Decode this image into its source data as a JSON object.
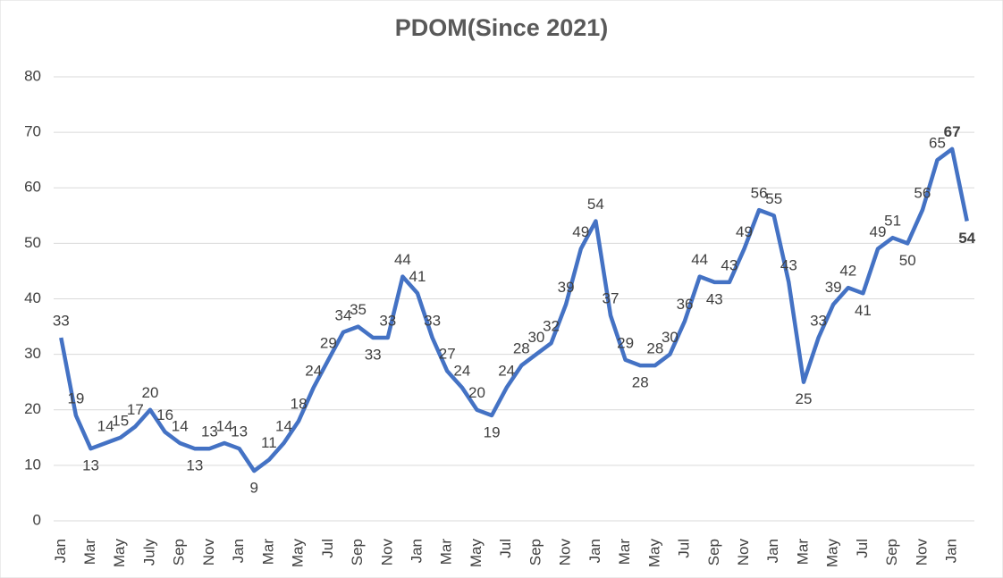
{
  "chart_data": {
    "type": "line",
    "title": "PDOM(Since 2021)",
    "categories": [
      "Jan",
      null,
      "Mar",
      null,
      "May",
      null,
      "July",
      null,
      "Sep",
      null,
      "Nov",
      null,
      "Jan",
      null,
      "Mar",
      null,
      "May",
      null,
      "Jul",
      null,
      "Sep",
      null,
      "Nov",
      null,
      "Jan",
      null,
      "Mar",
      null,
      "May",
      null,
      "Jul",
      null,
      "Sep",
      null,
      "Nov",
      null,
      "Jan",
      null,
      "Mar",
      null,
      "May",
      null,
      "Jul",
      null,
      "Sep",
      null,
      "Nov",
      null,
      "Jan",
      null,
      "Mar",
      null,
      "May",
      null,
      "Jul",
      null,
      "Sep",
      null,
      "Nov",
      null,
      "Jan",
      null
    ],
    "series": [
      {
        "name": "PDOM",
        "color": "#4472c4",
        "values": [
          33,
          19,
          13,
          14,
          15,
          17,
          20,
          16,
          14,
          13,
          13,
          14,
          13,
          9,
          11,
          14,
          18,
          24,
          29,
          34,
          35,
          33,
          33,
          44,
          41,
          33,
          27,
          24,
          20,
          19,
          24,
          28,
          30,
          32,
          39,
          49,
          54,
          37,
          29,
          28,
          28,
          30,
          36,
          44,
          43,
          43,
          49,
          56,
          55,
          43,
          25,
          33,
          39,
          42,
          41,
          49,
          51,
          50,
          56,
          65,
          67,
          54
        ]
      }
    ],
    "ylim": [
      0,
      80
    ],
    "yticks": [
      0,
      10,
      20,
      30,
      40,
      50,
      60,
      70,
      80
    ],
    "grid": true
  }
}
